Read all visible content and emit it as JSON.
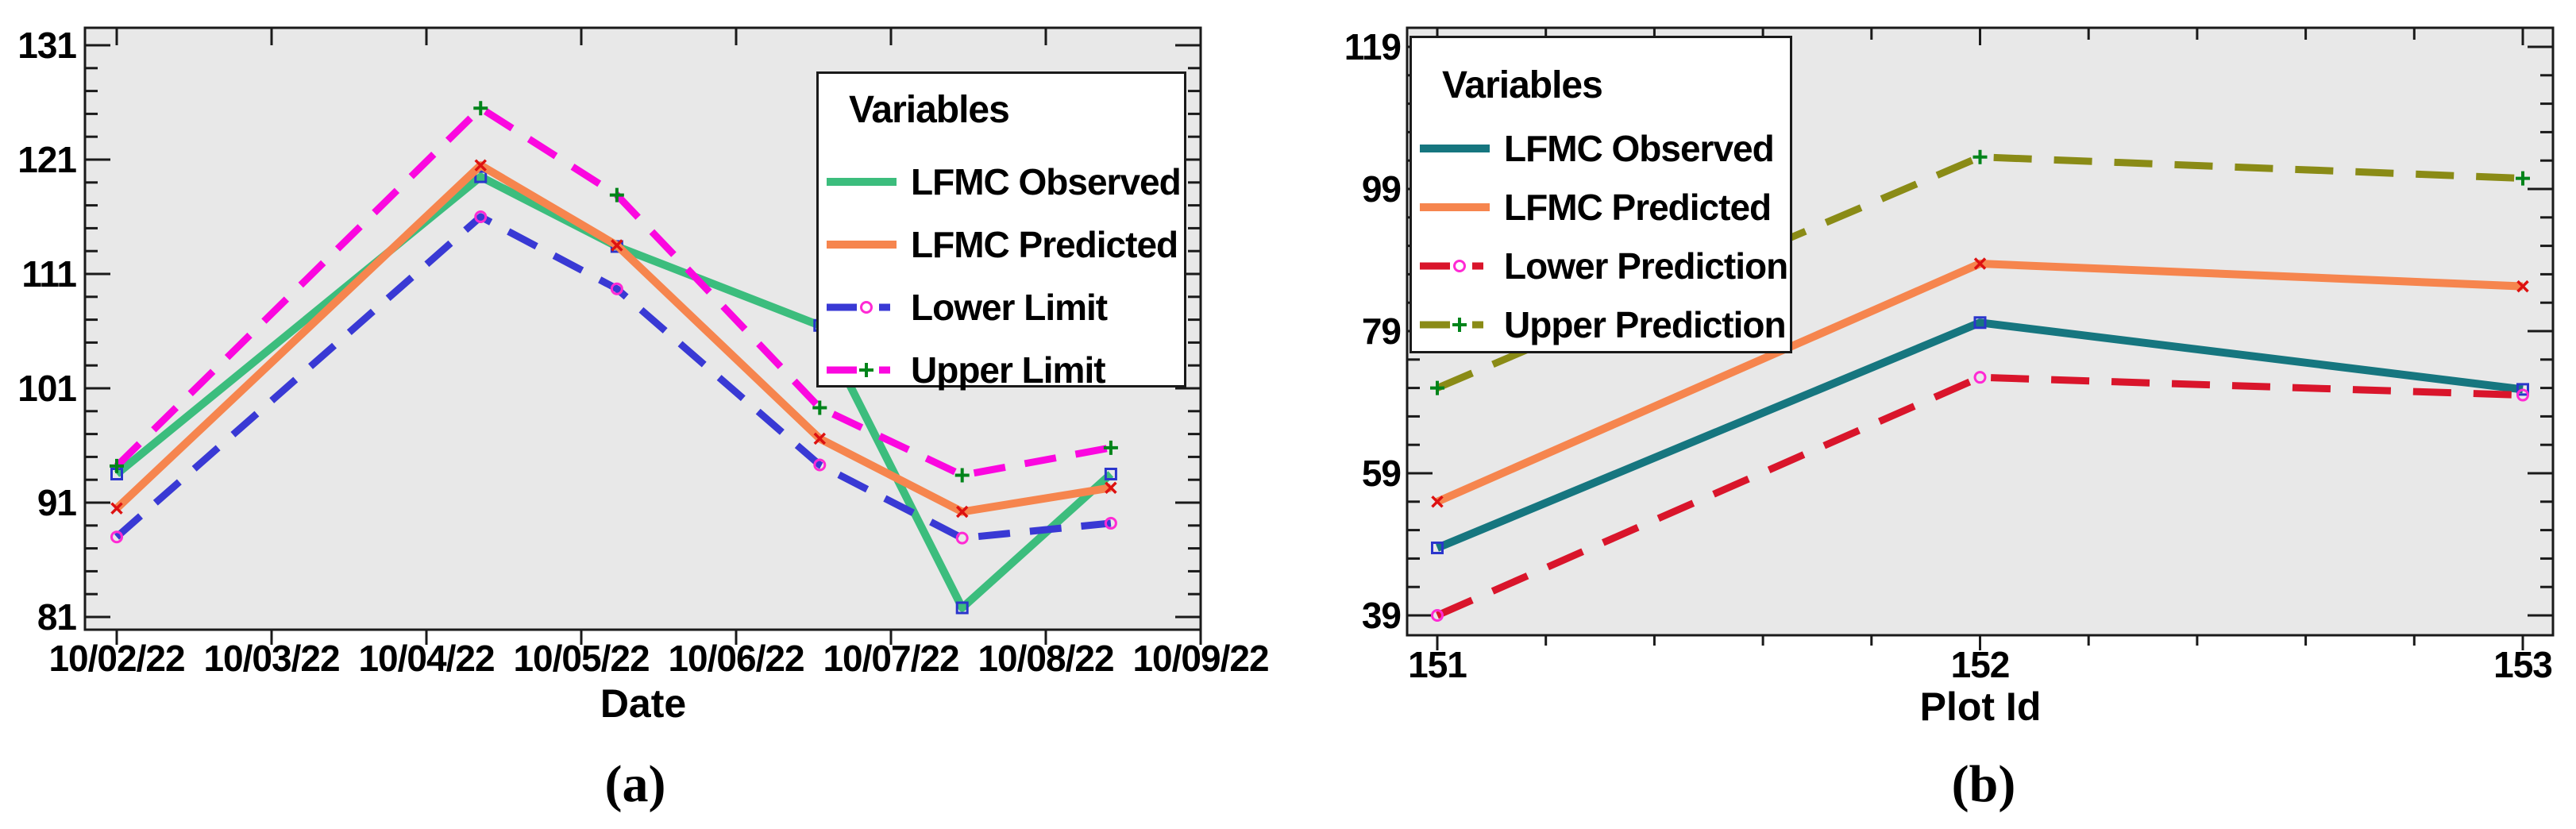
{
  "figure": {
    "background": "#ffffff",
    "plot_background": "#e8e8e8",
    "frame_color": "#1a1a1a"
  },
  "chart_data": [
    {
      "id": "a",
      "type": "line",
      "caption": "(a)",
      "legend_title": "Variables",
      "legend_position": "top-right",
      "xlabel": "Date",
      "ylabel": "",
      "grid": false,
      "x_tick_labels": [
        "10/02/22",
        "10/03/22",
        "10/04/22",
        "10/05/22",
        "10/06/22",
        "10/07/22",
        "10/08/22",
        "10/09/22"
      ],
      "x_unit": "days after 10/02/22",
      "x": [
        0,
        2.35,
        3.23,
        4.54,
        5.46,
        6.42
      ],
      "y_ticks": [
        81,
        91,
        101,
        111,
        121,
        131
      ],
      "ylim": [
        79.9,
        132.5
      ],
      "xlim": [
        -0.21,
        7.0
      ],
      "series": [
        {
          "name": "LFMC Observed",
          "color": "#3cbd7d",
          "line": "solid",
          "marker": "square",
          "marker_color": "#2a35cc",
          "values": [
            93.5,
            119.5,
            113.4,
            106.5,
            81.8,
            93.5
          ]
        },
        {
          "name": "LFMC Predicted",
          "color": "#f6854e",
          "line": "solid",
          "marker": "x",
          "marker_color": "#dd1111",
          "values": [
            90.5,
            120.5,
            113.5,
            96.6,
            90.2,
            92.3
          ]
        },
        {
          "name": "Lower Limit",
          "color": "#3939d4",
          "line": "dashed",
          "marker": "circle",
          "marker_color": "#ff2ad4",
          "values": [
            88.0,
            116.0,
            109.7,
            94.3,
            87.9,
            89.2
          ]
        },
        {
          "name": "Upper Limit",
          "color": "#fb07df",
          "line": "dashed",
          "marker": "plus",
          "marker_color": "#00841a",
          "values": [
            94.2,
            125.5,
            117.9,
            99.3,
            93.4,
            95.8
          ]
        }
      ]
    },
    {
      "id": "b",
      "type": "line",
      "caption": "(b)",
      "legend_title": "Variables",
      "legend_position": "top-left",
      "xlabel": "Plot Id",
      "ylabel": "",
      "grid": false,
      "x_tick_labels": [
        "151",
        "152",
        "153"
      ],
      "x": [
        151,
        152,
        153
      ],
      "y_ticks": [
        39,
        59,
        79,
        99,
        119
      ],
      "ylim": [
        36.0,
        122.0
      ],
      "xlim": [
        150.94,
        153.06
      ],
      "series": [
        {
          "name": "LFMC Observed",
          "color": "#16767f",
          "line": "solid",
          "marker": "square",
          "marker_color": "#2a35cc",
          "values": [
            48.5,
            80.2,
            70.8
          ]
        },
        {
          "name": "LFMC Predicted",
          "color": "#f6854e",
          "line": "solid",
          "marker": "x",
          "marker_color": "#dd1111",
          "values": [
            55.0,
            88.5,
            85.3
          ]
        },
        {
          "name": "Lower Prediction",
          "color": "#d9152b",
          "line": "dashed",
          "marker": "circle",
          "marker_color": "#ff2ad4",
          "values": [
            39.0,
            72.5,
            70.0
          ]
        },
        {
          "name": "Upper Prediction",
          "color": "#8a8b16",
          "line": "dashed",
          "marker": "plus",
          "marker_color": "#00841a",
          "values": [
            71.0,
            103.5,
            100.5
          ]
        }
      ]
    }
  ]
}
